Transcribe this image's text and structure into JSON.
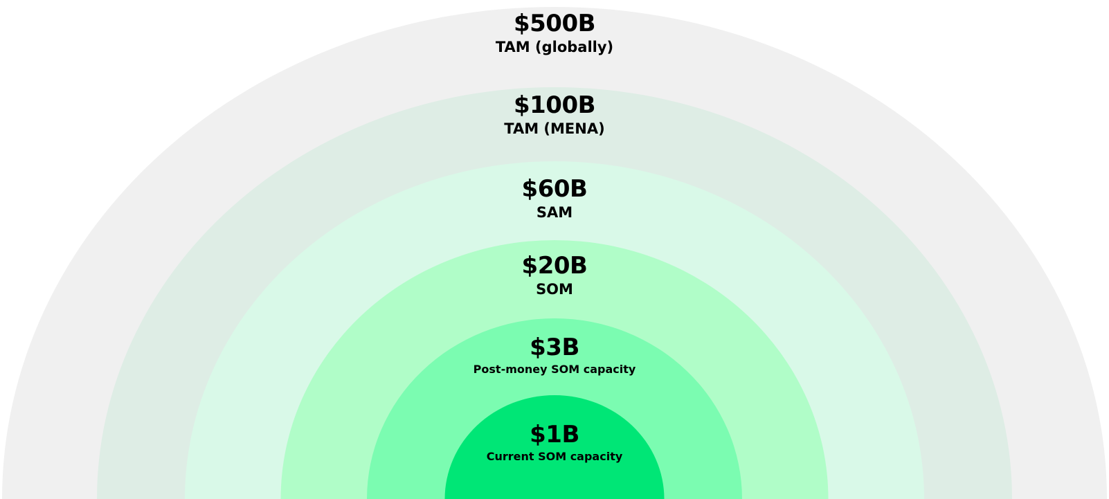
{
  "rings": [
    {
      "value": "$500B",
      "caption": "TAM (globally)",
      "color": "#f0f0f0"
    },
    {
      "value": "$100B",
      "caption": "TAM (MENA)",
      "color": "#deede5"
    },
    {
      "value": "$60B",
      "caption": "SAM",
      "color": "#d9f9e8"
    },
    {
      "value": "$20B",
      "caption": "SOM",
      "color": "#b0fdc8"
    },
    {
      "value": "$3B",
      "caption": "Post-money SOM capacity",
      "color": "#7bfcb1"
    },
    {
      "value": "$1B",
      "caption": "Current SOM capacity",
      "color": "#00e676"
    }
  ]
}
